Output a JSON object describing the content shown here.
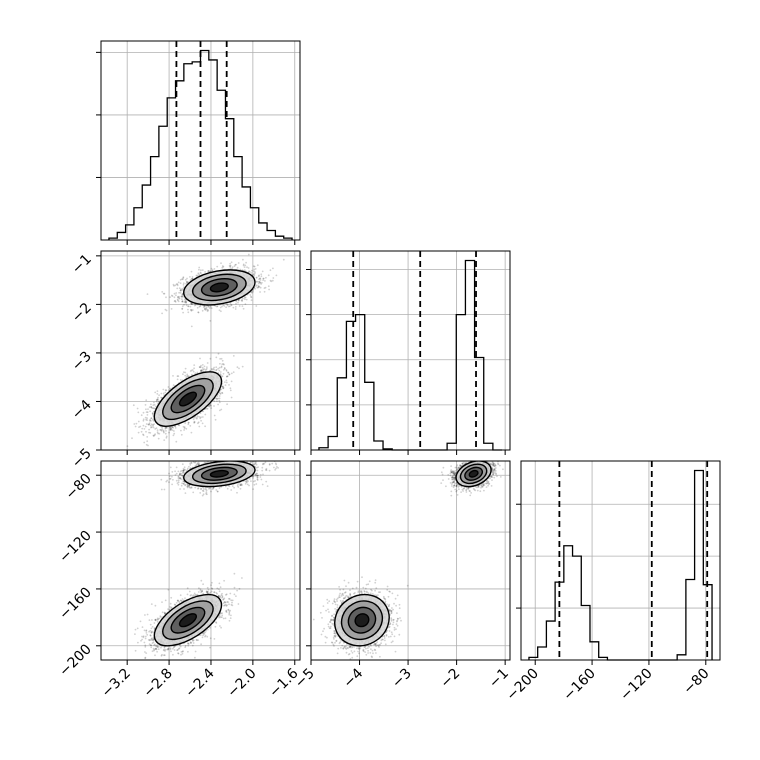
{
  "chart_data": {
    "type": "corner",
    "parameters": [
      {
        "id": "p0",
        "range": [
          -3.45,
          -1.55
        ],
        "ticks": [
          -3.2,
          -2.8,
          -2.4,
          -2.0,
          -1.6
        ],
        "tick_labels": [
          "−3.2",
          "−2.8",
          "−2.4",
          "−2.0",
          "−1.6"
        ],
        "quantiles": [
          -2.73,
          -2.5,
          -2.25
        ],
        "hist": [
          1,
          4,
          8,
          17,
          29,
          44,
          60,
          75,
          84,
          93,
          94,
          100,
          95,
          79,
          64,
          44,
          28,
          17,
          9,
          5,
          2,
          1
        ],
        "hist_yticks": [
          33,
          66,
          99
        ]
      },
      {
        "id": "p1",
        "range": [
          -5.0,
          -0.9
        ],
        "ticks": [
          -5,
          -4,
          -3,
          -2,
          -1
        ],
        "tick_labels": [
          "−5",
          "−4",
          "−3",
          "−2",
          "−1"
        ],
        "quantiles": [
          -4.13,
          -2.75,
          -1.6
        ],
        "hist": [
          1,
          6,
          32,
          57,
          60,
          30,
          4,
          0.5,
          0,
          0,
          0,
          0,
          0,
          0,
          3,
          60,
          84,
          41,
          3,
          0
        ],
        "hist_yticks": [
          20,
          40,
          60,
          80
        ]
      },
      {
        "id": "p2",
        "range": [
          -210,
          -70
        ],
        "ticks": [
          -200,
          -160,
          -120,
          -80
        ],
        "tick_labels": [
          "−200",
          "−160",
          "−120",
          "−80"
        ],
        "quantiles": [
          -183,
          -118,
          -79
        ],
        "hist": [
          1,
          5,
          15,
          30,
          44,
          40,
          21,
          7,
          1,
          0,
          0,
          0,
          0,
          0,
          0,
          0,
          0,
          2,
          31,
          73,
          29
        ],
        "hist_yticks": [
          20,
          40,
          60
        ]
      }
    ],
    "modes": [
      {
        "mean": [
          -2.32,
          -1.65,
          -79
        ],
        "sd": [
          0.17,
          0.18,
          4.5
        ],
        "rho01": 0.3,
        "rho02": 0.3,
        "rho12": 0.3
      },
      {
        "mean": [
          -2.62,
          -3.95,
          -182
        ],
        "sd": [
          0.16,
          0.28,
          9
        ],
        "rho01": 0.65,
        "rho02": 0.6,
        "rho12": 0.1
      }
    ],
    "contour_levels_sigma": [
      0.5,
      1.0,
      1.5,
      2.0
    ],
    "grid": true
  }
}
